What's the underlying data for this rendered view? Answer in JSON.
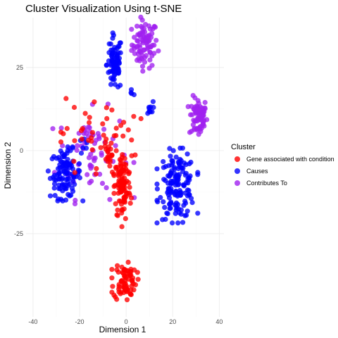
{
  "chart_data": {
    "type": "scatter",
    "title": "Cluster Visualization Using t-SNE",
    "xlabel": "Dimension 1",
    "ylabel": "Dimension 2",
    "xlim": [
      -43,
      42
    ],
    "ylim": [
      -50,
      40
    ],
    "xticks": [
      -40,
      -20,
      0,
      20,
      40
    ],
    "yticks": [
      25,
      0,
      -25
    ],
    "grid": true,
    "legend": {
      "title": "Cluster",
      "position": "right",
      "entries": [
        {
          "label": "Gene associated with condition",
          "color": "#ff0000"
        },
        {
          "label": "Causes",
          "color": "#0000ff"
        },
        {
          "label": "Contributes To",
          "color": "#a020f0"
        }
      ]
    },
    "series": [
      {
        "name": "Gene associated with condition",
        "color": "#ff0000",
        "clusters": [
          {
            "cx": -1.5,
            "cy": -11,
            "rx": 3.2,
            "ry": 9.5,
            "n": 95
          },
          {
            "cx": -0.5,
            "cy": -39,
            "rx": 4.5,
            "ry": 5.5,
            "n": 75
          },
          {
            "cx": -8,
            "cy": -2,
            "rx": 1.5,
            "ry": 2.5,
            "n": 16
          },
          {
            "cx": -12,
            "cy": 3,
            "rx": 15,
            "ry": 12,
            "n": 55
          }
        ]
      },
      {
        "name": "Causes",
        "color": "#0000ff",
        "clusters": [
          {
            "cx": -26,
            "cy": -7,
            "rx": 6,
            "ry": 6.5,
            "n": 110
          },
          {
            "cx": -5,
            "cy": 26,
            "rx": 3,
            "ry": 7.5,
            "n": 80
          },
          {
            "cx": 22,
            "cy": -10.5,
            "rx": 7,
            "ry": 9,
            "n": 150
          },
          {
            "cx": 10,
            "cy": 12.5,
            "rx": 1.4,
            "ry": 2,
            "n": 10
          },
          {
            "cx": -18,
            "cy": 2,
            "rx": 3,
            "ry": 2,
            "n": 5
          },
          {
            "cx": 2,
            "cy": 17,
            "rx": 2,
            "ry": 1.5,
            "n": 4
          }
        ]
      },
      {
        "name": "Contributes To",
        "color": "#a020f0",
        "clusters": [
          {
            "cx": 8,
            "cy": 32,
            "rx": 5,
            "ry": 6.5,
            "n": 85
          },
          {
            "cx": 31,
            "cy": 10,
            "rx": 3.5,
            "ry": 5.5,
            "n": 70
          },
          {
            "cx": -14,
            "cy": -1,
            "rx": 14,
            "ry": 12,
            "n": 60
          },
          {
            "cx": -18,
            "cy": 6,
            "rx": 2,
            "ry": 2,
            "n": 10
          }
        ]
      }
    ]
  }
}
